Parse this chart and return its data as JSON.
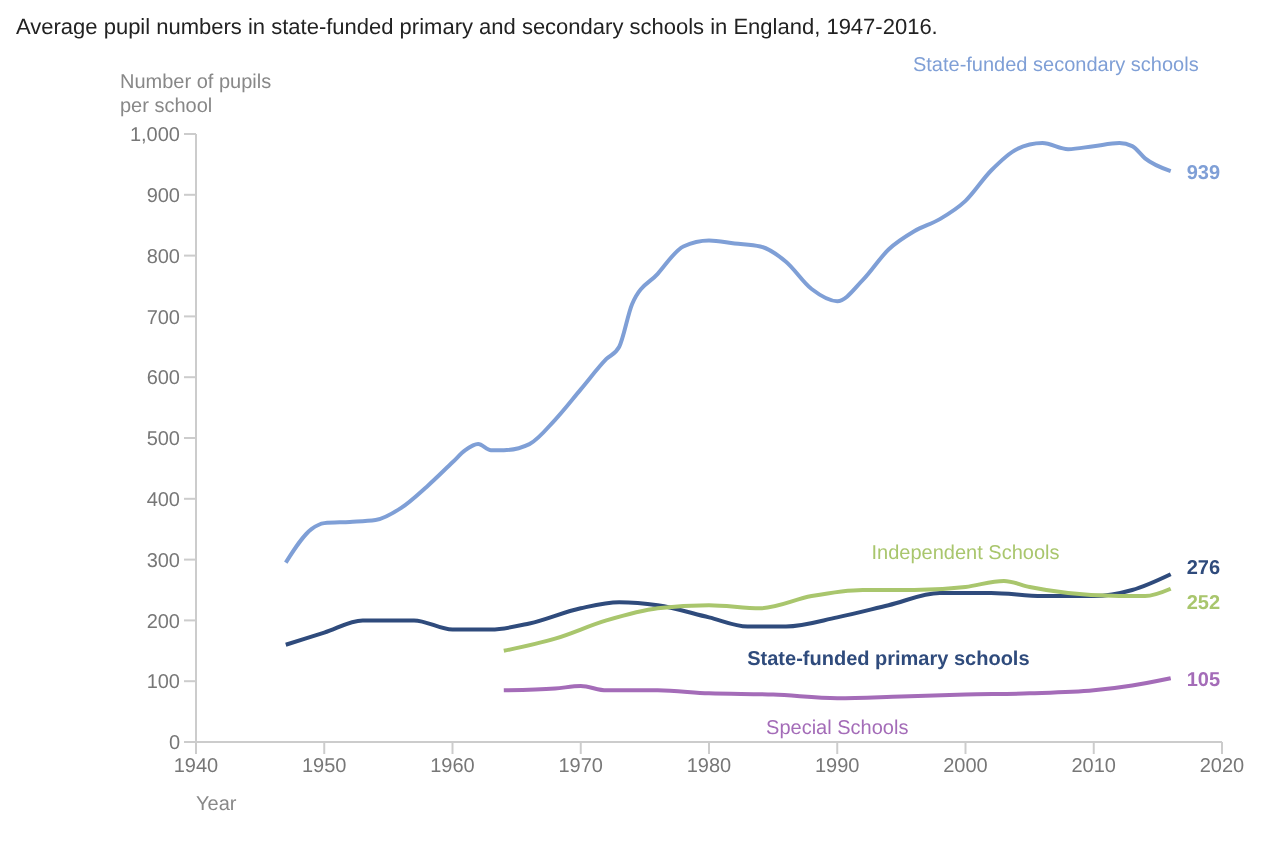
{
  "chart_data": {
    "type": "line",
    "title": "Average pupil numbers in state-funded primary and secondary schools in England, 1947-2016.",
    "ylabel": "Number of pupils per school",
    "xlabel": "Year",
    "xlim": [
      1940,
      2020
    ],
    "xticks": [
      1940,
      1950,
      1960,
      1970,
      1980,
      1990,
      2000,
      2010,
      2020
    ],
    "ylim": [
      0,
      1000
    ],
    "yticks": [
      0,
      100,
      200,
      300,
      400,
      500,
      600,
      700,
      800,
      900,
      {
        "value": 1000,
        "label": "1,000"
      }
    ],
    "grid": false,
    "legend": false,
    "marker": "none",
    "line_style": "solid",
    "series": [
      {
        "name": "State-funded secondary schools",
        "color": "#7f9fd6",
        "x": [
          1947,
          1949,
          1950,
          1952,
          1954,
          1956,
          1958,
          1960,
          1961,
          1962,
          1963,
          1964,
          1966,
          1968,
          1970,
          1972,
          1973,
          1974,
          1976,
          1978,
          1980,
          1982,
          1984,
          1986,
          1988,
          1990,
          1992,
          1994,
          1996,
          1998,
          2000,
          2002,
          2004,
          2006,
          2008,
          2010,
          2012,
          2013,
          2014,
          2016
        ],
        "values": [
          295,
          350,
          360,
          362,
          365,
          385,
          420,
          460,
          480,
          490,
          480,
          480,
          490,
          530,
          580,
          630,
          650,
          720,
          770,
          815,
          825,
          820,
          815,
          790,
          745,
          725,
          760,
          810,
          840,
          860,
          890,
          940,
          975,
          985,
          975,
          980,
          985,
          980,
          960,
          939
        ],
        "value_labels": [
          null,
          null,
          null,
          null,
          null,
          null,
          null,
          null,
          null,
          null,
          null,
          null,
          null,
          null,
          null,
          null,
          null,
          null,
          null,
          null,
          null,
          null,
          null,
          null,
          null,
          null,
          null,
          null,
          null,
          null,
          null,
          null,
          null,
          null,
          null,
          null,
          null,
          null,
          null,
          "939"
        ]
      },
      {
        "name": "State-funded primary schools",
        "color": "#2f4b7c",
        "x": [
          1947,
          1950,
          1953,
          1957,
          1960,
          1963,
          1966,
          1970,
          1973,
          1976,
          1980,
          1983,
          1986,
          1990,
          1994,
          1998,
          2002,
          2006,
          2010,
          2013,
          2016
        ],
        "values": [
          160,
          180,
          200,
          200,
          185,
          185,
          195,
          220,
          230,
          225,
          205,
          190,
          190,
          205,
          225,
          245,
          245,
          240,
          240,
          250,
          276
        ],
        "value_labels": [
          null,
          null,
          null,
          null,
          null,
          null,
          null,
          null,
          null,
          null,
          null,
          null,
          null,
          null,
          null,
          null,
          null,
          null,
          null,
          null,
          "276"
        ]
      },
      {
        "name": "Independent Schools",
        "color": "#a9c66d",
        "x": [
          1964,
          1968,
          1972,
          1976,
          1980,
          1984,
          1988,
          1992,
          1996,
          2000,
          2003,
          2005,
          2008,
          2012,
          2014,
          2016
        ],
        "values": [
          150,
          170,
          200,
          220,
          225,
          220,
          240,
          250,
          250,
          255,
          265,
          255,
          245,
          240,
          240,
          252
        ],
        "value_labels": [
          null,
          null,
          null,
          null,
          null,
          null,
          null,
          null,
          null,
          null,
          null,
          null,
          null,
          null,
          null,
          "252"
        ]
      },
      {
        "name": "Special Schools",
        "color": "#a46cb8",
        "x": [
          1964,
          1968,
          1970,
          1972,
          1976,
          1980,
          1985,
          1990,
          1995,
          2000,
          2005,
          2010,
          2013,
          2016
        ],
        "values": [
          85,
          88,
          92,
          85,
          85,
          80,
          78,
          72,
          75,
          78,
          80,
          85,
          93,
          105
        ],
        "value_labels": [
          null,
          null,
          null,
          null,
          null,
          null,
          null,
          null,
          null,
          null,
          null,
          null,
          null,
          "105"
        ]
      }
    ]
  }
}
